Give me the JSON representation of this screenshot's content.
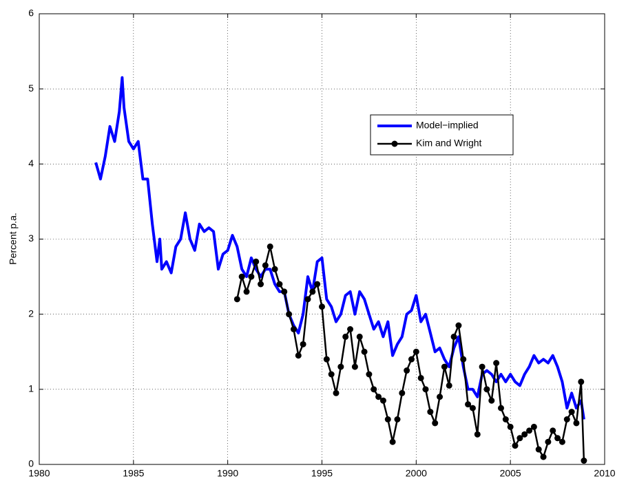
{
  "chart_data": {
    "type": "line",
    "ylabel": "Percent p.a.",
    "xlim": [
      1980,
      2010
    ],
    "xticks": [
      1980,
      1985,
      1990,
      1995,
      2000,
      2005,
      2010
    ],
    "ylim": [
      0,
      6
    ],
    "yticks": [
      0,
      1,
      2,
      3,
      4,
      5,
      6
    ],
    "grid": true,
    "series": [
      {
        "name": "Model−implied",
        "color": "#0000ff",
        "x": [
          1983,
          1983.25,
          1983.5,
          1983.75,
          1984,
          1984.25,
          1984.4,
          1984.5,
          1984.75,
          1985,
          1985.25,
          1985.5,
          1985.75,
          1986,
          1986.25,
          1986.4,
          1986.5,
          1986.75,
          1987,
          1987.25,
          1987.5,
          1987.75,
          1988,
          1988.25,
          1988.5,
          1988.75,
          1989,
          1989.25,
          1989.5,
          1989.75,
          1990,
          1990.25,
          1990.5,
          1990.75,
          1991,
          1991.25,
          1991.5,
          1991.75,
          1992,
          1992.25,
          1992.5,
          1992.75,
          1993,
          1993.25,
          1993.5,
          1993.75,
          1994,
          1994.25,
          1994.5,
          1994.75,
          1995,
          1995.25,
          1995.5,
          1995.75,
          1996,
          1996.25,
          1996.5,
          1996.75,
          1997,
          1997.25,
          1997.5,
          1997.75,
          1998,
          1998.25,
          1998.5,
          1998.75,
          1999,
          1999.25,
          1999.5,
          1999.75,
          2000,
          2000.25,
          2000.5,
          2000.75,
          2001,
          2001.25,
          2001.5,
          2001.75,
          2002,
          2002.25,
          2002.5,
          2002.75,
          2003,
          2003.25,
          2003.5,
          2003.75,
          2004,
          2004.25,
          2004.5,
          2004.75,
          2005,
          2005.25,
          2005.5,
          2005.75,
          2006,
          2006.25,
          2006.5,
          2006.75,
          2007,
          2007.25,
          2007.5,
          2007.75,
          2008,
          2008.25,
          2008.5,
          2008.75,
          2008.9
        ],
        "values": [
          4.02,
          3.8,
          4.1,
          4.5,
          4.3,
          4.7,
          5.15,
          4.75,
          4.3,
          4.2,
          4.3,
          3.8,
          3.8,
          3.2,
          2.7,
          3.0,
          2.6,
          2.7,
          2.55,
          2.9,
          3.0,
          3.35,
          3.0,
          2.85,
          3.2,
          3.1,
          3.15,
          3.1,
          2.6,
          2.8,
          2.85,
          3.05,
          2.9,
          2.6,
          2.5,
          2.75,
          2.6,
          2.5,
          2.6,
          2.6,
          2.4,
          2.3,
          2.3,
          2.0,
          1.85,
          1.75,
          2.0,
          2.5,
          2.3,
          2.7,
          2.75,
          2.2,
          2.1,
          1.9,
          2.0,
          2.25,
          2.3,
          2.0,
          2.3,
          2.2,
          2.0,
          1.8,
          1.9,
          1.7,
          1.9,
          1.45,
          1.6,
          1.7,
          2.0,
          2.05,
          2.25,
          1.9,
          2.0,
          1.75,
          1.5,
          1.55,
          1.4,
          1.3,
          1.55,
          1.7,
          1.3,
          1.0,
          1.0,
          0.9,
          1.2,
          1.25,
          1.2,
          1.1,
          1.2,
          1.1,
          1.2,
          1.1,
          1.05,
          1.2,
          1.3,
          1.45,
          1.35,
          1.4,
          1.35,
          1.45,
          1.3,
          1.1,
          0.75,
          0.95,
          0.75,
          0.85,
          0.6
        ]
      },
      {
        "name": "Kim and Wright",
        "color": "#000000",
        "marker": "circle",
        "x": [
          1990.5,
          1990.75,
          1991,
          1991.25,
          1991.5,
          1991.75,
          1992,
          1992.25,
          1992.5,
          1992.75,
          1993,
          1993.25,
          1993.5,
          1993.75,
          1994,
          1994.25,
          1994.5,
          1994.75,
          1995,
          1995.25,
          1995.5,
          1995.75,
          1996,
          1996.25,
          1996.5,
          1996.75,
          1997,
          1997.25,
          1997.5,
          1997.75,
          1998,
          1998.25,
          1998.5,
          1998.75,
          1999,
          1999.25,
          1999.5,
          1999.75,
          2000,
          2000.25,
          2000.5,
          2000.75,
          2001,
          2001.25,
          2001.5,
          2001.75,
          2002,
          2002.25,
          2002.5,
          2002.75,
          2003,
          2003.25,
          2003.5,
          2003.75,
          2004,
          2004.25,
          2004.5,
          2004.75,
          2005,
          2005.25,
          2005.5,
          2005.75,
          2006,
          2006.25,
          2006.5,
          2006.75,
          2007,
          2007.25,
          2007.5,
          2007.75,
          2008,
          2008.25,
          2008.5,
          2008.75,
          2008.9
        ],
        "values": [
          2.2,
          2.5,
          2.3,
          2.5,
          2.7,
          2.4,
          2.65,
          2.9,
          2.6,
          2.4,
          2.3,
          2.0,
          1.8,
          1.45,
          1.6,
          2.2,
          2.3,
          2.4,
          2.1,
          1.4,
          1.2,
          0.95,
          1.3,
          1.7,
          1.8,
          1.3,
          1.7,
          1.5,
          1.2,
          1.0,
          0.9,
          0.85,
          0.6,
          0.3,
          0.6,
          0.95,
          1.25,
          1.4,
          1.5,
          1.15,
          1.0,
          0.7,
          0.55,
          0.9,
          1.3,
          1.05,
          1.7,
          1.85,
          1.4,
          0.8,
          0.75,
          0.4,
          1.3,
          1.0,
          0.85,
          1.35,
          0.75,
          0.6,
          0.5,
          0.25,
          0.35,
          0.4,
          0.45,
          0.5,
          0.2,
          0.1,
          0.3,
          0.45,
          0.35,
          0.3,
          0.6,
          0.7,
          0.55,
          1.1,
          0.05
        ]
      }
    ]
  }
}
